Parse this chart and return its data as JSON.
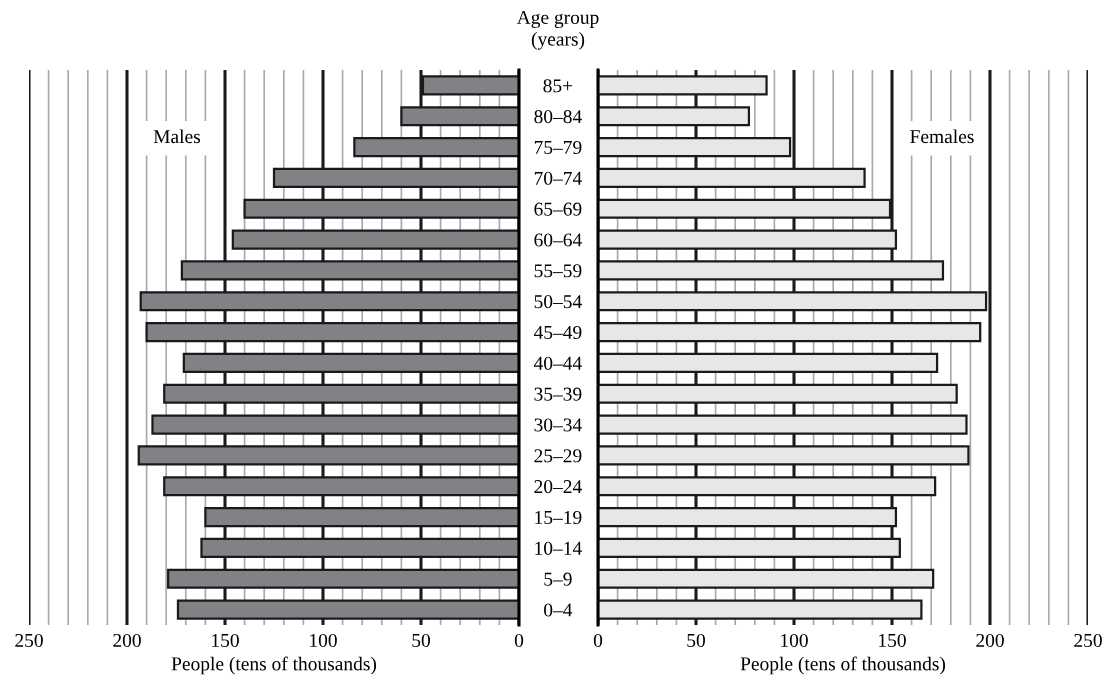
{
  "chart_data": [
    {
      "type": "bar",
      "orientation": "horizontal",
      "ylabel": "Age group\n(years)",
      "xlabel": "People (tens of thousands)",
      "annotations": [
        "Males"
      ],
      "categories": [
        "85+",
        "80–84",
        "75–79",
        "70–74",
        "65–69",
        "60–64",
        "55–59",
        "50–54",
        "45–49",
        "40–44",
        "35–39",
        "30–34",
        "25–29",
        "20–24",
        "15–19",
        "10–14",
        "5–9",
        "0–4"
      ],
      "values": [
        49,
        60,
        84,
        125,
        140,
        146,
        172,
        193,
        190,
        171,
        181,
        187,
        194,
        181,
        160,
        162,
        179,
        174
      ],
      "color": "#808285",
      "xlim": [
        250,
        0
      ],
      "xticks": [
        250,
        {
          "value": 240,
          "label": null
        },
        {
          "value": 230,
          "label": null
        },
        {
          "value": 220,
          "label": null
        },
        {
          "value": 210,
          "label": null
        },
        200,
        {
          "value": 190,
          "label": null
        },
        {
          "value": 180,
          "label": null
        },
        {
          "value": 170,
          "label": null
        },
        {
          "value": 160,
          "label": null
        },
        150,
        {
          "value": 140,
          "label": null
        },
        {
          "value": 130,
          "label": null
        },
        {
          "value": 120,
          "label": null
        },
        {
          "value": 110,
          "label": null
        },
        100,
        {
          "value": 90,
          "label": null
        },
        {
          "value": 80,
          "label": null
        },
        {
          "value": 70,
          "label": null
        },
        {
          "value": 60,
          "label": null
        },
        50,
        {
          "value": 40,
          "label": null
        },
        {
          "value": 30,
          "label": null
        },
        {
          "value": 20,
          "label": null
        },
        {
          "value": 10,
          "label": null
        },
        0
      ],
      "grid": "x"
    },
    {
      "type": "bar",
      "orientation": "horizontal",
      "xlabel": "People (tens of thousands)",
      "annotations": [
        "Females"
      ],
      "tick_labels": "x",
      "values": [
        86,
        77,
        98,
        136,
        149,
        152,
        176,
        198,
        195,
        173,
        183,
        188,
        189,
        172,
        152,
        154,
        171,
        165
      ],
      "color": "#e6e7e8",
      "xlim": [
        0,
        250
      ],
      "xticks": [
        0,
        {
          "value": 10,
          "label": null
        },
        {
          "value": 20,
          "label": null
        },
        {
          "value": 30,
          "label": null
        },
        {
          "value": 40,
          "label": null
        },
        50,
        {
          "value": 60,
          "label": null
        },
        {
          "value": 70,
          "label": null
        },
        {
          "value": 80,
          "label": null
        },
        {
          "value": 90,
          "label": null
        },
        100,
        {
          "value": 110,
          "label": null
        },
        {
          "value": 120,
          "label": null
        },
        {
          "value": 130,
          "label": null
        },
        {
          "value": 140,
          "label": null
        },
        150,
        {
          "value": 160,
          "label": null
        },
        {
          "value": 170,
          "label": null
        },
        {
          "value": 180,
          "label": null
        },
        {
          "value": 190,
          "label": null
        },
        200,
        {
          "value": 210,
          "label": null
        },
        {
          "value": 220,
          "label": null
        },
        {
          "value": 230,
          "label": null
        },
        {
          "value": 240,
          "label": null
        },
        250
      ],
      "grid": "x"
    }
  ]
}
